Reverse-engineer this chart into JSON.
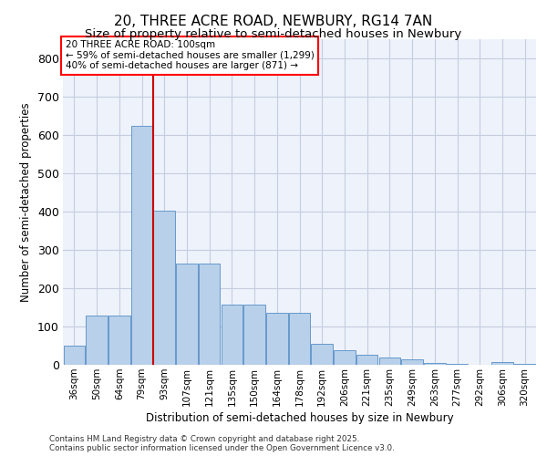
{
  "title1": "20, THREE ACRE ROAD, NEWBURY, RG14 7AN",
  "title2": "Size of property relative to semi-detached houses in Newbury",
  "xlabel": "Distribution of semi-detached houses by size in Newbury",
  "ylabel": "Number of semi-detached properties",
  "categories": [
    "36sqm",
    "50sqm",
    "64sqm",
    "79sqm",
    "93sqm",
    "107sqm",
    "121sqm",
    "135sqm",
    "150sqm",
    "164sqm",
    "178sqm",
    "192sqm",
    "206sqm",
    "221sqm",
    "235sqm",
    "249sqm",
    "263sqm",
    "277sqm",
    "292sqm",
    "306sqm",
    "320sqm"
  ],
  "values": [
    50,
    128,
    128,
    622,
    403,
    265,
    263,
    158,
    157,
    135,
    135,
    55,
    38,
    25,
    18,
    14,
    5,
    2,
    1,
    8,
    2
  ],
  "bar_color": "#b8d0ea",
  "bar_edge_color": "#6699cc",
  "vline_color": "#cc0000",
  "vline_x": 3.5,
  "annotation_title": "20 THREE ACRE ROAD: 100sqm",
  "annotation_line1": "← 59% of semi-detached houses are smaller (1,299)",
  "annotation_line2": "40% of semi-detached houses are larger (871) →",
  "ylim": [
    0,
    850
  ],
  "yticks": [
    0,
    100,
    200,
    300,
    400,
    500,
    600,
    700,
    800
  ],
  "footer1": "Contains HM Land Registry data © Crown copyright and database right 2025.",
  "footer2": "Contains public sector information licensed under the Open Government Licence v3.0.",
  "bg_color": "#eef2fa",
  "grid_color": "#c5cde0"
}
